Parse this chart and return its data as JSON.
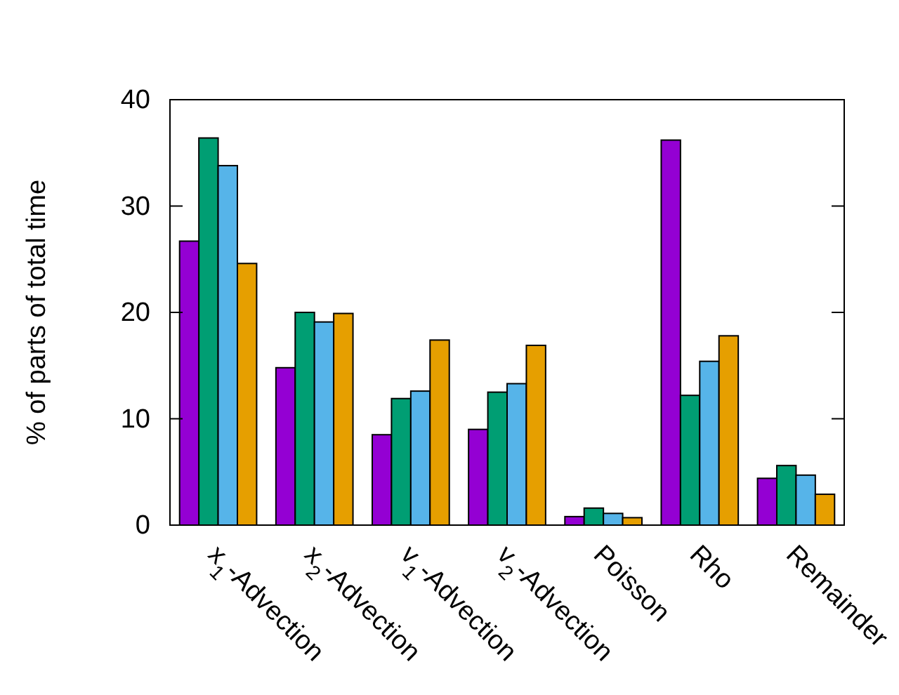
{
  "chart_data": {
    "type": "bar",
    "ylabel": "% of parts of total time",
    "categories": [
      "x$_{1}$-Advection",
      "x$_{2}$-Advection",
      "v$_{1}$-Advection",
      "v$_{2}$-Advection",
      "Poisson",
      "Rho",
      "Remainder"
    ],
    "series": [
      {
        "color": "#9400d3",
        "values": [
          26.7,
          14.8,
          8.5,
          9.0,
          0.8,
          36.2,
          4.4
        ]
      },
      {
        "color": "#009e73",
        "values": [
          36.4,
          20.0,
          11.9,
          12.5,
          1.6,
          12.2,
          5.6
        ]
      },
      {
        "color": "#56b4e9",
        "values": [
          33.8,
          19.1,
          12.6,
          13.3,
          1.1,
          15.4,
          4.7
        ]
      },
      {
        "color": "#e69f00",
        "values": [
          24.6,
          19.9,
          17.4,
          16.9,
          0.7,
          17.8,
          2.9
        ]
      }
    ],
    "ylim": [
      0,
      40
    ],
    "yticks": [
      0,
      10,
      20,
      30,
      40
    ],
    "grid": false
  }
}
